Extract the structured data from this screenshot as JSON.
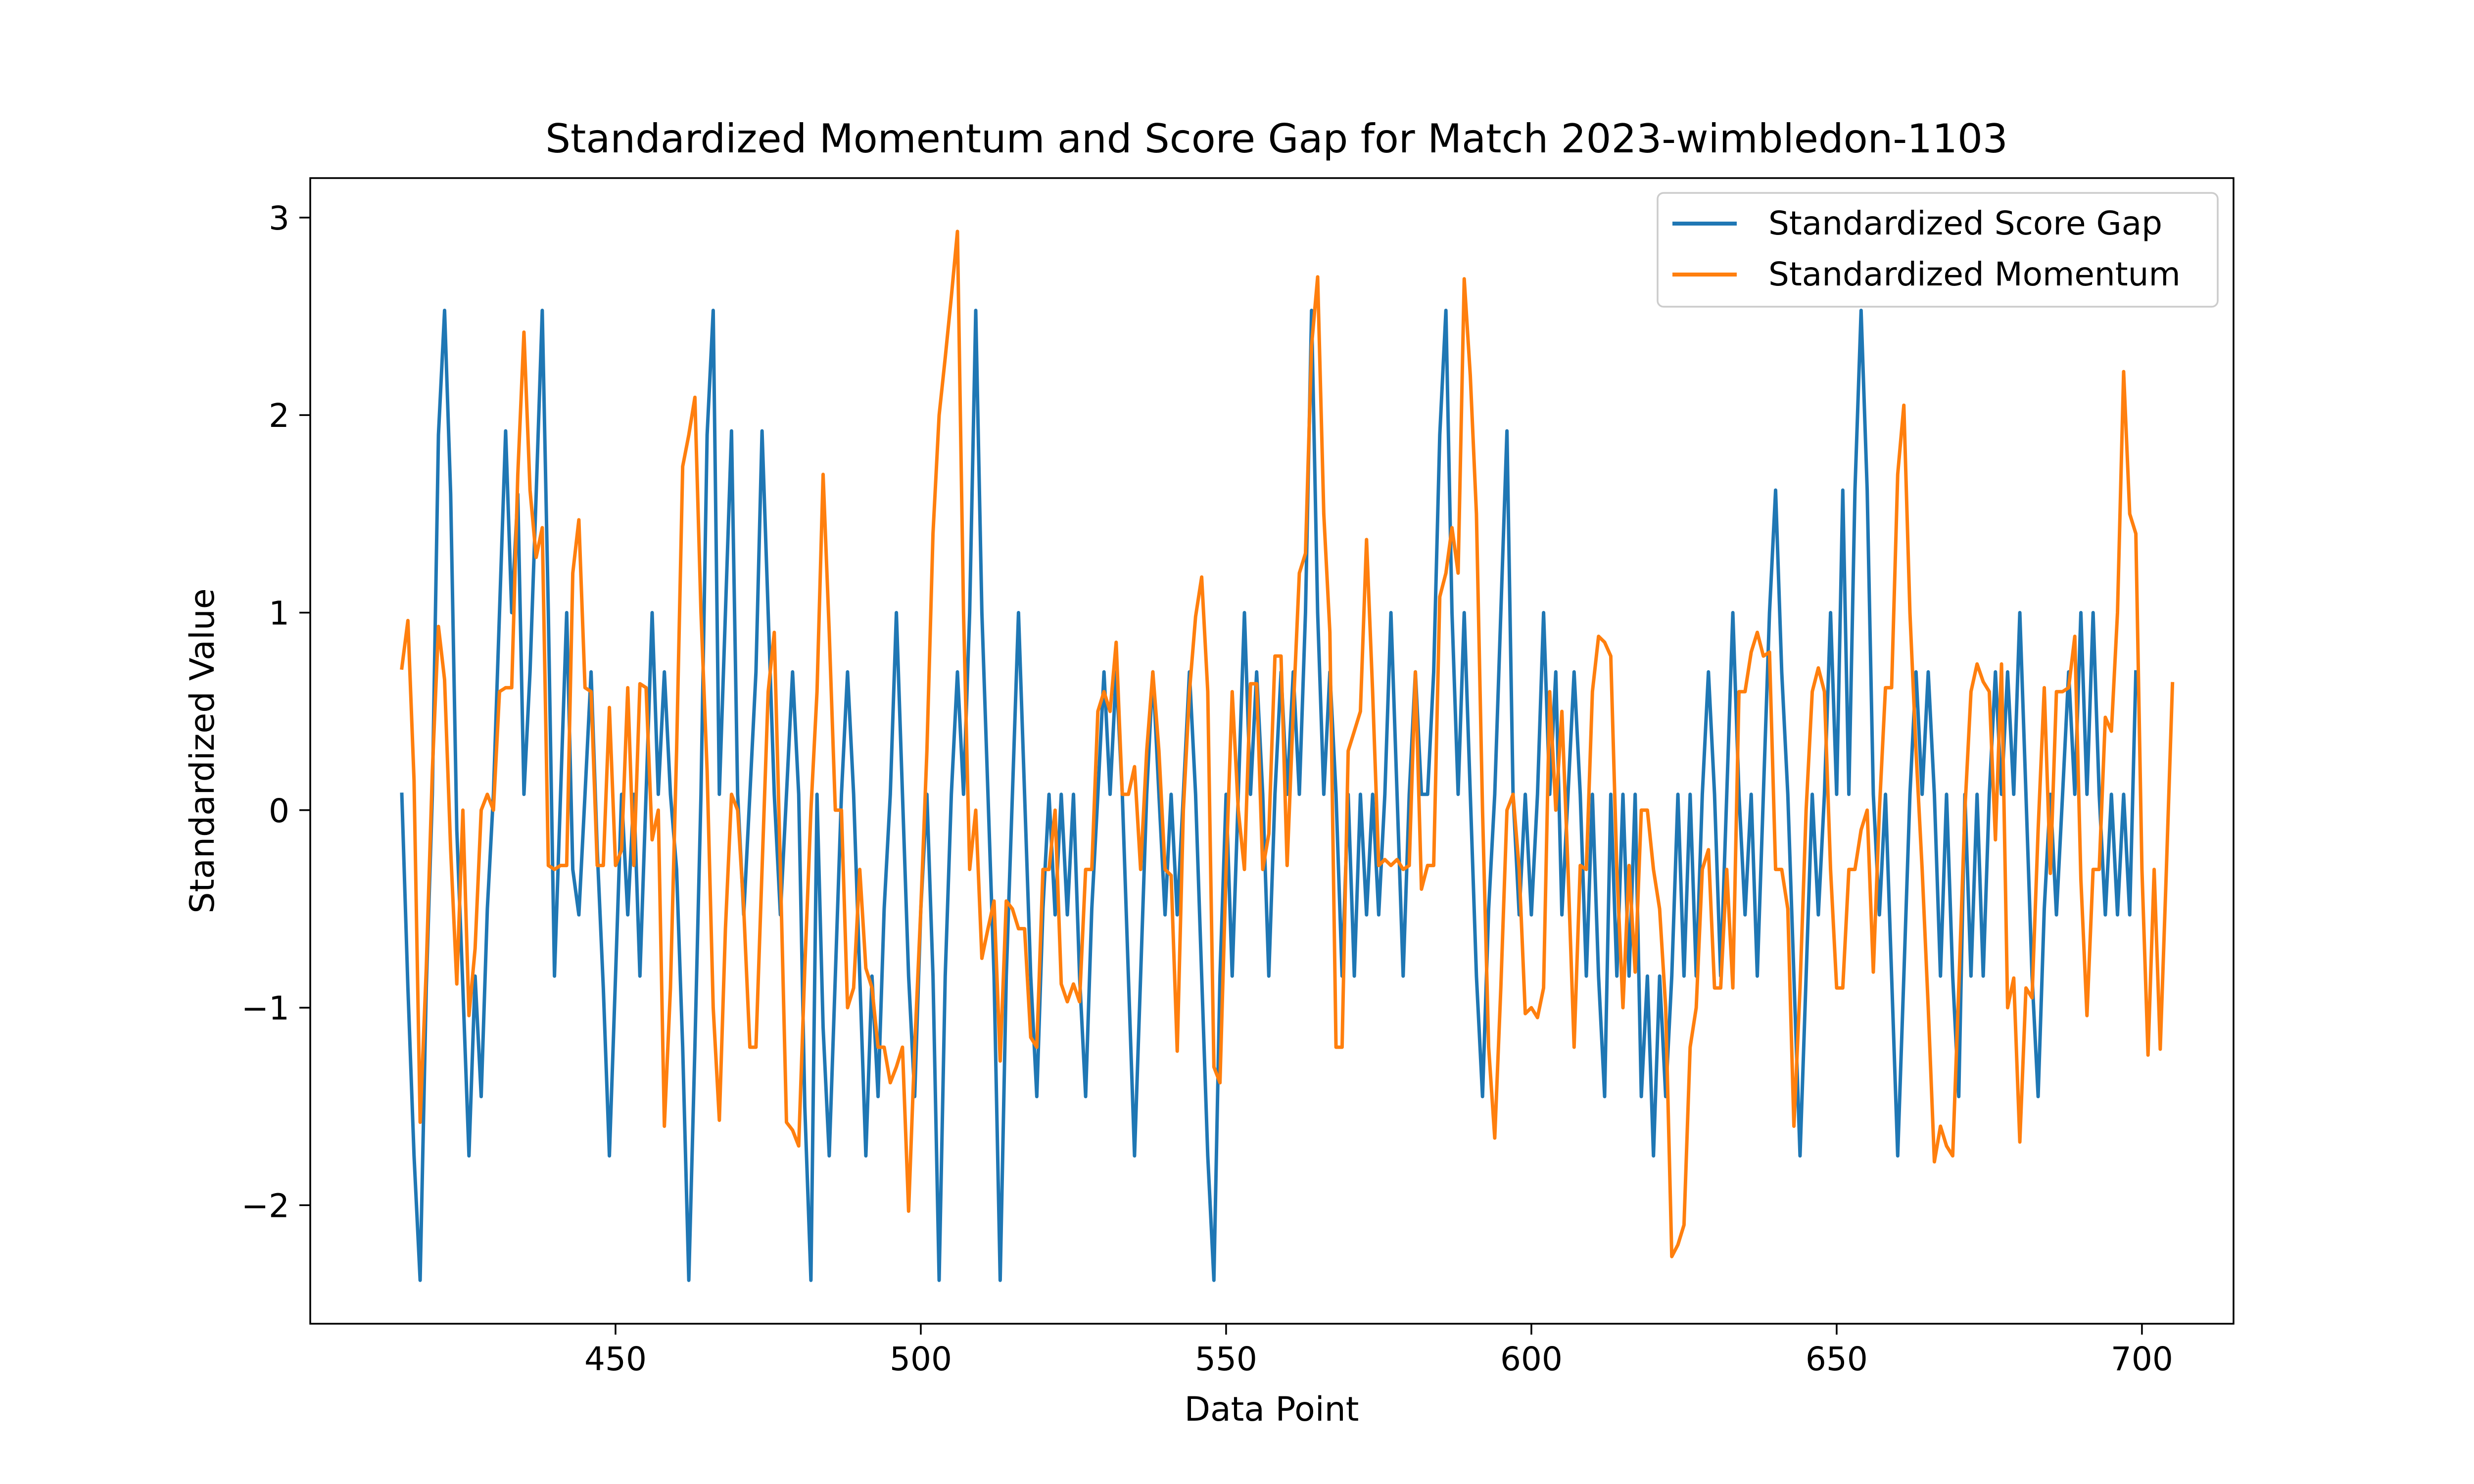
{
  "chart_data": {
    "type": "line",
    "title": "Standardized Momentum and Score Gap for Match 2023-wimbledon-1103",
    "xlabel": "Data Point",
    "ylabel": "Standardized Value",
    "xlim": [
      400,
      715
    ],
    "ylim": [
      -2.6,
      3.2
    ],
    "xticks": [
      450,
      500,
      550,
      600,
      650,
      700
    ],
    "yticks": [
      -2,
      -1,
      0,
      1,
      2,
      3
    ],
    "ytick_labels": [
      "−2",
      "−1",
      "0",
      "1",
      "2",
      "3"
    ],
    "legend_position": "top-right",
    "series": [
      {
        "name": "Standardized Score Gap",
        "color": "#1f77b4",
        "x_start": 415,
        "values": [
          0.08,
          -0.9,
          -1.75,
          -2.38,
          -0.9,
          0.08,
          1.9,
          2.53,
          1.6,
          -0.1,
          -0.9,
          -1.75,
          -0.84,
          -1.45,
          -0.5,
          0.08,
          1.0,
          1.92,
          1.0,
          1.6,
          0.08,
          0.7,
          1.6,
          2.53,
          1.0,
          -0.84,
          0.08,
          1.0,
          -0.3,
          -0.53,
          0.08,
          0.7,
          -0.2,
          -0.9,
          -1.75,
          -0.84,
          0.08,
          -0.53,
          0.08,
          -0.84,
          0.08,
          1.0,
          0.08,
          0.7,
          0.08,
          -0.3,
          -1.2,
          -2.38,
          -1.2,
          0.08,
          1.9,
          2.53,
          0.08,
          1.0,
          1.92,
          0.08,
          -0.53,
          0.08,
          0.7,
          1.92,
          1.0,
          0.08,
          -0.53,
          0.08,
          0.7,
          0.08,
          -1.5,
          -2.38,
          0.08,
          -1.1,
          -1.75,
          -0.84,
          0.08,
          0.7,
          0.08,
          -0.84,
          -1.75,
          -0.84,
          -1.45,
          -0.5,
          0.08,
          1.0,
          0.08,
          -0.84,
          -1.45,
          -0.5,
          0.08,
          -0.84,
          -2.38,
          -0.84,
          0.08,
          0.7,
          0.08,
          1.0,
          2.53,
          1.0,
          0.08,
          -0.84,
          -2.38,
          -0.84,
          0.08,
          1.0,
          0.08,
          -0.84,
          -1.45,
          -0.5,
          0.08,
          -0.53,
          0.08,
          -0.53,
          0.08,
          -0.84,
          -1.45,
          -0.5,
          0.08,
          0.7,
          0.08,
          0.7,
          0.08,
          -0.84,
          -1.75,
          -0.84,
          0.08,
          0.7,
          0.08,
          -0.53,
          0.08,
          -0.53,
          0.08,
          0.7,
          0.08,
          -0.84,
          -1.75,
          -2.38,
          -0.84,
          0.08,
          -0.84,
          0.08,
          1.0,
          0.08,
          0.7,
          0.08,
          -0.84,
          0.08,
          0.7,
          0.08,
          0.7,
          0.08,
          1.0,
          2.53,
          1.0,
          0.08,
          0.7,
          0.08,
          -0.84,
          0.08,
          -0.84,
          0.08,
          -0.53,
          0.08,
          -0.53,
          0.08,
          1.0,
          0.08,
          -0.84,
          0.08,
          0.7,
          0.08,
          0.08,
          0.7,
          1.9,
          2.53,
          1.0,
          0.08,
          1.0,
          0.08,
          -0.84,
          -1.45,
          -0.5,
          0.08,
          1.0,
          1.92,
          0.08,
          -0.53,
          0.08,
          -0.53,
          0.08,
          1.0,
          0.08,
          0.7,
          -0.53,
          0.08,
          0.7,
          0.08,
          -0.84,
          0.08,
          -0.84,
          -1.45,
          0.08,
          -0.84,
          0.08,
          -0.84,
          0.08,
          -1.45,
          -0.84,
          -1.75,
          -0.84,
          -1.45,
          -0.84,
          0.08,
          -0.84,
          0.08,
          -0.84,
          0.08,
          0.7,
          0.08,
          -0.84,
          0.08,
          1.0,
          0.08,
          -0.53,
          0.08,
          -0.84,
          0.08,
          1.0,
          1.62,
          0.7,
          0.08,
          -0.84,
          -1.75,
          -0.84,
          0.08,
          -0.53,
          0.08,
          1.0,
          0.08,
          1.62,
          0.08,
          1.62,
          2.53,
          1.62,
          0.08,
          -0.53,
          0.08,
          -0.84,
          -1.75,
          -0.84,
          0.08,
          0.7,
          0.08,
          0.7,
          0.08,
          -0.84,
          0.08,
          -0.84,
          -1.45,
          0.08,
          -0.84,
          0.08,
          -0.84,
          0.08,
          0.7,
          0.08,
          0.7,
          0.08,
          1.0,
          0.08,
          -0.84,
          -1.45,
          -0.5,
          0.08,
          -0.53,
          0.08,
          0.7,
          0.08,
          1.0,
          0.08,
          1.0,
          0.08,
          -0.53,
          0.08,
          -0.53,
          0.08,
          -0.53,
          0.7
        ]
      },
      {
        "name": "Standardized Momentum",
        "color": "#ff7f0e",
        "x_start": 415,
        "values": [
          0.72,
          0.96,
          0.15,
          -1.58,
          -0.8,
          0.2,
          0.93,
          0.66,
          -0.2,
          -0.88,
          0.0,
          -1.04,
          -0.7,
          0.0,
          0.08,
          0.0,
          0.6,
          0.62,
          0.62,
          1.7,
          2.42,
          1.62,
          1.28,
          1.43,
          -0.28,
          -0.3,
          -0.28,
          -0.28,
          1.2,
          1.47,
          0.62,
          0.6,
          -0.28,
          -0.28,
          0.52,
          -0.28,
          -0.2,
          0.62,
          -0.28,
          0.64,
          0.62,
          -0.15,
          0.0,
          -1.6,
          -0.9,
          0.3,
          1.74,
          1.9,
          2.09,
          1.0,
          0.2,
          -1.0,
          -1.57,
          -0.6,
          0.08,
          0.0,
          -0.5,
          -1.2,
          -1.2,
          -0.3,
          0.6,
          0.9,
          -0.3,
          -1.58,
          -1.62,
          -1.7,
          -0.8,
          0.0,
          0.6,
          1.7,
          0.9,
          0.0,
          0.0,
          -1.0,
          -0.9,
          -0.3,
          -0.8,
          -0.9,
          -1.2,
          -1.2,
          -1.38,
          -1.3,
          -1.2,
          -2.03,
          -1.2,
          -0.5,
          0.3,
          1.4,
          2.0,
          2.29,
          2.6,
          2.93,
          1.0,
          -0.3,
          0.0,
          -0.75,
          -0.6,
          -0.46,
          -1.27,
          -0.46,
          -0.5,
          -0.6,
          -0.6,
          -1.15,
          -1.2,
          -0.3,
          -0.3,
          0.0,
          -0.88,
          -0.97,
          -0.88,
          -0.97,
          -0.3,
          -0.3,
          0.5,
          0.6,
          0.5,
          0.85,
          0.08,
          0.08,
          0.22,
          -0.3,
          0.3,
          0.7,
          0.3,
          -0.3,
          -0.33,
          -1.22,
          0.0,
          0.6,
          0.98,
          1.18,
          0.6,
          -1.3,
          -1.38,
          -0.3,
          0.6,
          0.0,
          -0.3,
          0.64,
          0.64,
          -0.3,
          -0.12,
          0.78,
          0.78,
          -0.28,
          0.5,
          1.2,
          1.3,
          2.35,
          2.7,
          1.5,
          0.9,
          -1.2,
          -1.2,
          0.3,
          0.4,
          0.5,
          1.37,
          0.6,
          -0.28,
          -0.25,
          -0.28,
          -0.25,
          -0.3,
          -0.28,
          0.7,
          -0.4,
          -0.28,
          -0.28,
          1.08,
          1.2,
          1.43,
          1.2,
          2.69,
          2.2,
          1.5,
          0.0,
          -1.2,
          -1.66,
          -0.9,
          0.0,
          0.08,
          -0.3,
          -1.03,
          -1.0,
          -1.05,
          -0.9,
          0.6,
          0.0,
          0.5,
          -0.3,
          -1.2,
          -0.28,
          -0.3,
          0.6,
          0.88,
          0.85,
          0.78,
          -0.3,
          -1.0,
          -0.28,
          -0.82,
          0.0,
          0.0,
          -0.3,
          -0.5,
          -1.0,
          -2.26,
          -2.2,
          -2.1,
          -1.2,
          -1.0,
          -0.3,
          -0.2,
          -0.9,
          -0.9,
          -0.3,
          -0.9,
          0.6,
          0.6,
          0.8,
          0.9,
          0.78,
          0.8,
          -0.3,
          -0.3,
          -0.5,
          -1.6,
          -0.9,
          0.0,
          0.6,
          0.72,
          0.6,
          -0.3,
          -0.9,
          -0.9,
          -0.3,
          -0.3,
          -0.1,
          0.0,
          -0.82,
          0.0,
          0.62,
          0.62,
          1.7,
          2.05,
          1.0,
          0.3,
          -0.3,
          -1.0,
          -1.78,
          -1.6,
          -1.7,
          -1.75,
          -0.9,
          0.0,
          0.6,
          0.74,
          0.65,
          0.6,
          -0.15,
          0.74,
          -1.0,
          -0.85,
          -1.68,
          -0.9,
          -0.95,
          -0.1,
          0.62,
          -0.32,
          0.6,
          0.6,
          0.62,
          0.88,
          -0.35,
          -1.04,
          -0.3,
          -0.3,
          0.47,
          0.4,
          1.0,
          2.22,
          1.5,
          1.4,
          -0.3,
          -1.24,
          -0.3,
          -1.21,
          -0.3,
          0.64
        ]
      }
    ]
  }
}
